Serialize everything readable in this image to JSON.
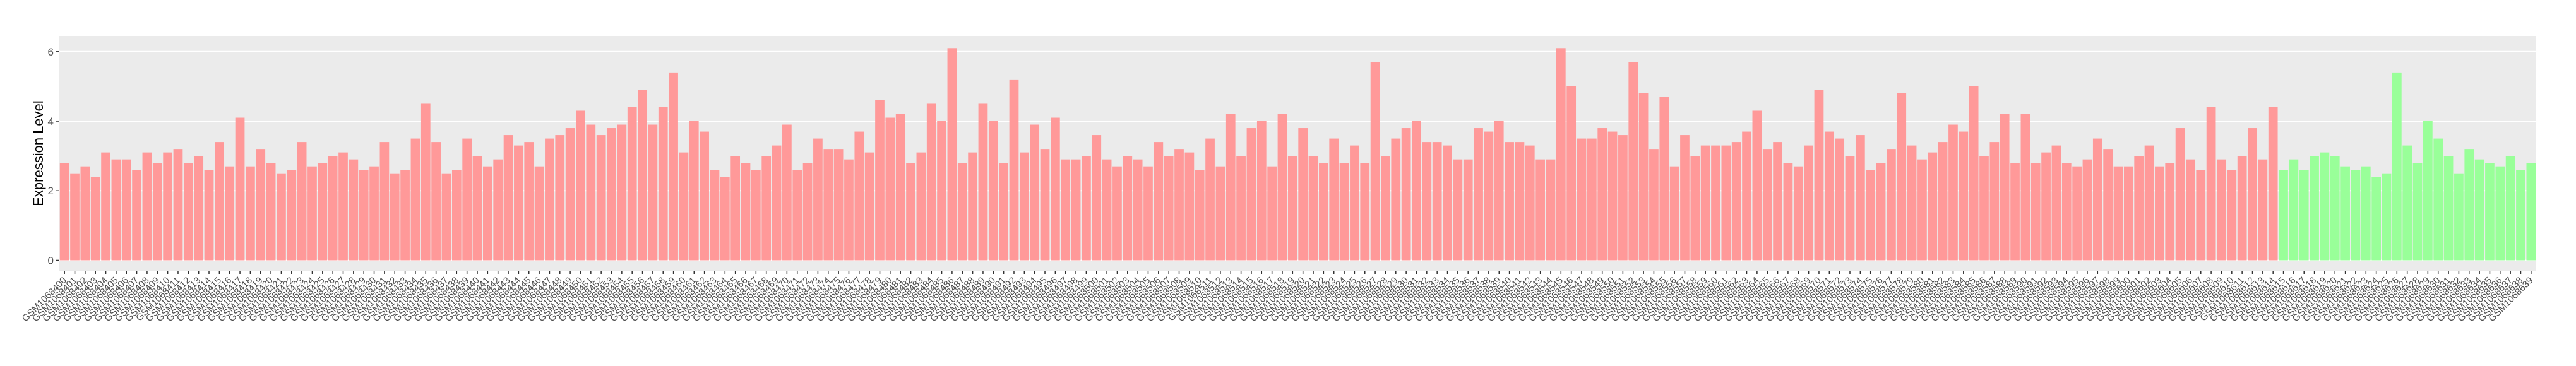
{
  "chart_data": {
    "type": "bar",
    "y_label": "Expression Level",
    "ylim": [
      -0.3,
      6.45
    ],
    "yticks": [
      0,
      2,
      4,
      6
    ],
    "grid": true,
    "categories": [
      "GSM1068400",
      "GSM1068401",
      "GSM1068402",
      "GSM1068403",
      "GSM1068404",
      "GSM1068405",
      "GSM1068406",
      "GSM1068407",
      "GSM1068408",
      "GSM1068409",
      "GSM1068410",
      "GSM1068411",
      "GSM1068412",
      "GSM1068413",
      "GSM1068414",
      "GSM1068415",
      "GSM1068416",
      "GSM1068417",
      "GSM1068418",
      "GSM1068419",
      "GSM1068420",
      "GSM1068421",
      "GSM1068422",
      "GSM1068423",
      "GSM1068424",
      "GSM1068425",
      "GSM1068426",
      "GSM1068427",
      "GSM1068428",
      "GSM1068429",
      "GSM1068430",
      "GSM1068431",
      "GSM1068432",
      "GSM1068433",
      "GSM1068434",
      "GSM1068435",
      "GSM1068436",
      "GSM1068437",
      "GSM1068438",
      "GSM1068439",
      "GSM1068440",
      "GSM1068441",
      "GSM1068442",
      "GSM1068443",
      "GSM1068444",
      "GSM1068445",
      "GSM1068446",
      "GSM1068447",
      "GSM1068448",
      "GSM1068449",
      "GSM1068450",
      "GSM1068451",
      "GSM1068452",
      "GSM1068453",
      "GSM1068454",
      "GSM1068455",
      "GSM1068456",
      "GSM1068457",
      "GSM1068458",
      "GSM1068459",
      "GSM1068460",
      "GSM1068461",
      "GSM1068462",
      "GSM1068463",
      "GSM1068464",
      "GSM1068465",
      "GSM1068466",
      "GSM1068467",
      "GSM1068468",
      "GSM1068469",
      "GSM1068470",
      "GSM1068471",
      "GSM1068472",
      "GSM1068473",
      "GSM1068474",
      "GSM1068475",
      "GSM1068476",
      "GSM1068477",
      "GSM1068478",
      "GSM1068479",
      "GSM1068480",
      "GSM1068481",
      "GSM1068482",
      "GSM1068483",
      "GSM1068484",
      "GSM1068485",
      "GSM1068486",
      "GSM1068487",
      "GSM1068488",
      "GSM1068489",
      "GSM1068490",
      "GSM1068491",
      "GSM1068492",
      "GSM1068493",
      "GSM1068494",
      "GSM1068495",
      "GSM1068496",
      "GSM1068497",
      "GSM1068498",
      "GSM1068499",
      "GSM1068500",
      "GSM1068501",
      "GSM1068502",
      "GSM1068503",
      "GSM1068504",
      "GSM1068505",
      "GSM1068506",
      "GSM1068507",
      "GSM1068508",
      "GSM1068509",
      "GSM1068510",
      "GSM1068511",
      "GSM1068512",
      "GSM1068513",
      "GSM1068514",
      "GSM1068515",
      "GSM1068516",
      "GSM1068517",
      "GSM1068518",
      "GSM1068519",
      "GSM1068520",
      "GSM1068521",
      "GSM1068522",
      "GSM1068523",
      "GSM1068524",
      "GSM1068525",
      "GSM1068526",
      "GSM1068527",
      "GSM1068528",
      "GSM1068529",
      "GSM1068530",
      "GSM1068531",
      "GSM1068532",
      "GSM1068533",
      "GSM1068534",
      "GSM1068535",
      "GSM1068536",
      "GSM1068537",
      "GSM1068538",
      "GSM1068539",
      "GSM1068540",
      "GSM1068541",
      "GSM1068542",
      "GSM1068543",
      "GSM1068544",
      "GSM1068545",
      "GSM1068546",
      "GSM1068547",
      "GSM1068548",
      "GSM1068549",
      "GSM1068550",
      "GSM1068551",
      "GSM1068552",
      "GSM1068553",
      "GSM1068554",
      "GSM1068555",
      "GSM1068556",
      "GSM1068557",
      "GSM1068558",
      "GSM1068559",
      "GSM1068560",
      "GSM1068561",
      "GSM1068562",
      "GSM1068563",
      "GSM1068564",
      "GSM1068565",
      "GSM1068566",
      "GSM1068567",
      "GSM1068568",
      "GSM1068569",
      "GSM1068570",
      "GSM1068571",
      "GSM1068572",
      "GSM1068573",
      "GSM1068574",
      "GSM1068575",
      "GSM1068576",
      "GSM1068577",
      "GSM1068578",
      "GSM1068579",
      "GSM1068580",
      "GSM1068581",
      "GSM1068582",
      "GSM1068583",
      "GSM1068584",
      "GSM1068585",
      "GSM1068586",
      "GSM1068587",
      "GSM1068588",
      "GSM1068589",
      "GSM1068590",
      "GSM1068591",
      "GSM1068592",
      "GSM1068593",
      "GSM1068594",
      "GSM1068595",
      "GSM1068596",
      "GSM1068597",
      "GSM1068598",
      "GSM1068599",
      "GSM1068600",
      "GSM1068601",
      "GSM1068602",
      "GSM1068603",
      "GSM1068604",
      "GSM1068605",
      "GSM1068606",
      "GSM1068607",
      "GSM1068608",
      "GSM1068609",
      "GSM1068610",
      "GSM1068611",
      "GSM1068612",
      "GSM1068613",
      "GSM1068614",
      "GSM1068615",
      "GSM1068616",
      "GSM1068617",
      "GSM1068618",
      "GSM1068619",
      "GSM1068620",
      "GSM1068621",
      "GSM1068622",
      "GSM1068623",
      "GSM1068624",
      "GSM1068625",
      "GSM1068626",
      "GSM1068627",
      "GSM1068628",
      "GSM1068629",
      "GSM1068630",
      "GSM1068631",
      "GSM1068632",
      "GSM1068633",
      "GSM1068634",
      "GSM1068635",
      "GSM1068636",
      "GSM1068637",
      "GSM1068638",
      "GSM1068639"
    ],
    "series": [
      {
        "color": "#ff9999",
        "values": [
          2.8,
          2.5,
          2.7,
          2.4,
          3.1,
          2.9,
          2.9,
          2.6,
          3.1,
          2.8,
          3.1,
          3.2,
          2.8,
          3.0,
          2.6,
          3.4,
          2.7,
          4.1,
          2.7,
          3.2,
          2.8,
          2.5,
          2.6,
          3.4,
          2.7,
          2.8,
          3.0,
          3.1,
          2.9,
          2.6,
          2.7,
          3.4,
          2.5,
          2.6,
          3.5,
          4.5,
          3.4,
          2.5,
          2.6,
          3.5,
          3.0,
          2.7,
          2.9,
          3.6,
          3.3,
          3.4,
          2.7,
          3.5,
          3.6,
          3.8,
          4.3,
          3.9,
          3.6,
          3.8,
          3.9,
          4.4,
          4.9,
          3.9,
          4.4,
          5.4,
          3.1,
          4.0,
          3.7,
          2.6,
          2.4,
          3.0,
          2.8,
          2.6,
          3.0,
          3.3,
          3.9,
          2.6,
          2.8,
          3.5,
          3.2,
          3.2,
          2.9,
          3.7,
          3.1,
          4.6,
          4.1,
          4.2,
          2.8,
          3.1,
          4.5,
          4.0,
          6.1,
          2.8,
          3.1,
          4.5,
          4.0,
          2.8,
          5.2,
          3.1,
          3.9,
          3.2,
          4.1,
          2.9,
          2.9,
          3.0,
          3.6,
          2.9,
          2.7,
          3.0,
          2.9,
          2.7,
          3.4,
          3.0,
          3.2,
          3.1,
          2.6,
          3.5,
          2.7,
          4.2,
          3.0,
          3.8,
          4.0,
          2.7,
          4.2,
          3.0,
          3.8,
          3.0,
          2.8,
          3.5,
          2.8,
          3.3,
          2.8,
          5.7,
          3.0,
          3.5,
          3.8,
          4.0,
          3.4,
          3.4,
          3.3,
          2.9,
          2.9,
          3.8,
          3.7,
          4.0,
          3.4,
          3.4,
          3.3,
          2.9,
          2.9,
          6.1,
          5.0,
          3.5,
          3.5,
          3.8,
          3.7,
          3.6,
          5.7,
          4.8,
          3.2,
          4.7,
          2.7,
          3.6,
          3.0,
          3.3,
          3.3,
          3.3,
          3.4,
          3.7,
          4.3,
          3.2,
          3.4,
          2.8,
          2.7,
          3.3,
          4.9,
          3.7,
          3.5,
          3.0,
          3.6,
          2.6,
          2.8,
          3.2,
          4.8,
          3.3,
          2.9,
          3.1,
          3.4,
          3.9,
          3.7,
          5.0,
          3.0,
          3.4,
          4.2,
          2.8,
          4.2,
          2.8,
          3.1,
          3.3,
          2.8,
          2.7,
          2.9,
          3.5,
          3.2,
          2.7,
          2.7,
          3.0,
          3.3,
          2.7,
          2.8,
          3.8,
          2.9,
          2.6,
          4.4,
          2.9,
          2.6,
          3.0,
          3.8,
          2.9,
          4.4,
          null,
          null,
          null,
          null,
          null,
          null,
          null,
          null,
          null,
          null,
          null,
          null,
          null,
          null,
          null,
          null,
          null,
          null,
          null,
          null,
          null,
          null,
          null,
          null,
          null
        ]
      },
      {
        "color": "#99ff99",
        "values": [
          null,
          null,
          null,
          null,
          null,
          null,
          null,
          null,
          null,
          null,
          null,
          null,
          null,
          null,
          null,
          null,
          null,
          null,
          null,
          null,
          null,
          null,
          null,
          null,
          null,
          null,
          null,
          null,
          null,
          null,
          null,
          null,
          null,
          null,
          null,
          null,
          null,
          null,
          null,
          null,
          null,
          null,
          null,
          null,
          null,
          null,
          null,
          null,
          null,
          null,
          null,
          null,
          null,
          null,
          null,
          null,
          null,
          null,
          null,
          null,
          null,
          null,
          null,
          null,
          null,
          null,
          null,
          null,
          null,
          null,
          null,
          null,
          null,
          null,
          null,
          null,
          null,
          null,
          null,
          null,
          null,
          null,
          null,
          null,
          null,
          null,
          null,
          null,
          null,
          null,
          null,
          null,
          null,
          null,
          null,
          null,
          null,
          null,
          null,
          null,
          null,
          null,
          null,
          null,
          null,
          null,
          null,
          null,
          null,
          null,
          null,
          null,
          null,
          null,
          null,
          null,
          null,
          null,
          null,
          null,
          null,
          null,
          null,
          null,
          null,
          null,
          null,
          null,
          null,
          null,
          null,
          null,
          null,
          null,
          null,
          null,
          null,
          null,
          null,
          null,
          null,
          null,
          null,
          null,
          null,
          null,
          null,
          null,
          null,
          null,
          null,
          null,
          null,
          null,
          null,
          null,
          null,
          null,
          null,
          null,
          null,
          null,
          null,
          null,
          null,
          null,
          null,
          null,
          null,
          null,
          null,
          null,
          null,
          null,
          null,
          null,
          null,
          null,
          null,
          null,
          null,
          null,
          null,
          null,
          null,
          null,
          null,
          null,
          null,
          null,
          null,
          null,
          null,
          null,
          null,
          null,
          null,
          null,
          null,
          null,
          null,
          null,
          null,
          null,
          null,
          null,
          null,
          null,
          null,
          null,
          null,
          null,
          null,
          null,
          null,
          2.6,
          2.9,
          2.6,
          3.0,
          3.1,
          3.0,
          2.7,
          2.6,
          2.7,
          2.4,
          2.5,
          5.4,
          3.3,
          2.8,
          4.0,
          3.5,
          3.0,
          2.5,
          3.2,
          2.9,
          2.8,
          2.7,
          3.0,
          2.6,
          2.8
        ]
      }
    ]
  }
}
